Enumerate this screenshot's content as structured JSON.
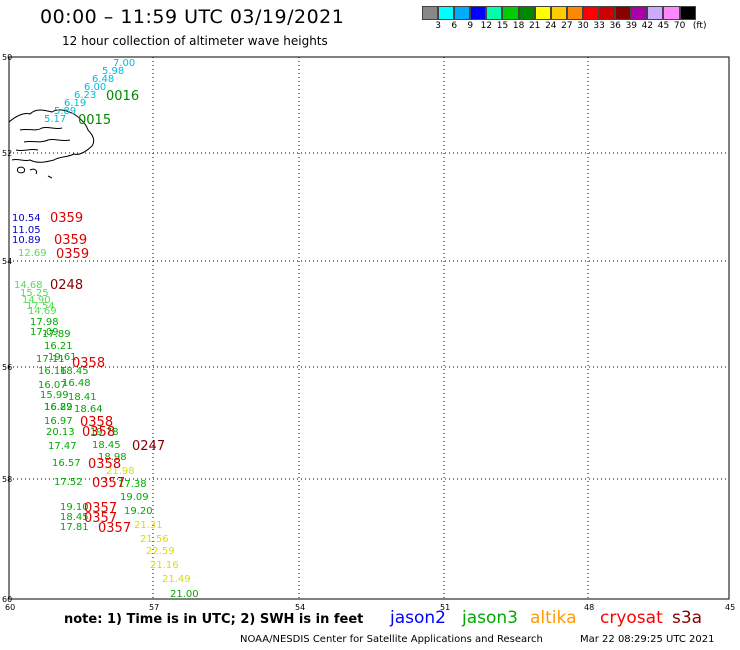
{
  "title": "00:00 – 11:59 UTC 03/19/2021",
  "subtitle": "12 hour collection of altimeter wave heights",
  "colorbar": {
    "colors": [
      "#888888",
      "#00ffff",
      "#00aaff",
      "#0000ff",
      "#00ffaa",
      "#00cc00",
      "#008800",
      "#ffff00",
      "#ffcc00",
      "#ff8800",
      "#ff0000",
      "#cc0000",
      "#880000",
      "#aa00aa",
      "#ccaaff",
      "#ff88ff",
      "#000000"
    ],
    "labels": [
      "3",
      "6",
      "9",
      "12",
      "15",
      "18",
      "21",
      "24",
      "27",
      "30",
      "33",
      "36",
      "39",
      "42",
      "45",
      "70",
      "(ft)"
    ]
  },
  "axes": {
    "lat_labels": [
      "50",
      "52",
      "54",
      "56",
      "58",
      "60"
    ],
    "lon_labels": [
      "60",
      "57",
      "54",
      "51",
      "48",
      "45"
    ]
  },
  "swh_labels": [
    {
      "t": "7.00",
      "c": "#00bbdd"
    },
    {
      "t": "5.98",
      "c": "#00bbdd"
    },
    {
      "t": "6.48",
      "c": "#00bbdd"
    },
    {
      "t": "6.00",
      "c": "#00bbdd"
    },
    {
      "t": "6.23",
      "c": "#00bbdd"
    },
    {
      "t": "6.19",
      "c": "#00bbdd"
    },
    {
      "t": "5.89",
      "c": "#00bbdd"
    },
    {
      "t": "5.17",
      "c": "#00bbdd"
    },
    {
      "t": "10.54",
      "c": "#0000cc"
    },
    {
      "t": "11.05",
      "c": "#0000cc"
    },
    {
      "t": "10.89",
      "c": "#0000cc"
    },
    {
      "t": "12.69",
      "c": "#55dd55"
    },
    {
      "t": "14.68",
      "c": "#55dd55"
    },
    {
      "t": "15.25",
      "c": "#55dd55"
    },
    {
      "t": "14.90",
      "c": "#55dd55"
    },
    {
      "t": "17.54",
      "c": "#55dd55"
    },
    {
      "t": "14.69",
      "c": "#55dd55"
    },
    {
      "t": "17.98",
      "c": "#00aa00"
    },
    {
      "t": "17.09",
      "c": "#00aa00"
    },
    {
      "t": "17.89",
      "c": "#00aa00"
    },
    {
      "t": "16.21",
      "c": "#00aa00"
    },
    {
      "t": "17.11",
      "c": "#00aa00"
    },
    {
      "t": "19.61",
      "c": "#00aa00"
    },
    {
      "t": "16.16",
      "c": "#00aa00"
    },
    {
      "t": "18.45",
      "c": "#00aa00"
    },
    {
      "t": "16.07",
      "c": "#00aa00"
    },
    {
      "t": "16.48",
      "c": "#00aa00"
    },
    {
      "t": "15.99",
      "c": "#00aa00"
    },
    {
      "t": "18.41",
      "c": "#00aa00"
    },
    {
      "t": "16.82",
      "c": "#00aa00"
    },
    {
      "t": "16.29",
      "c": "#00aa00"
    },
    {
      "t": "18.64",
      "c": "#00aa00"
    },
    {
      "t": "16.97",
      "c": "#00aa00"
    },
    {
      "t": "20.13",
      "c": "#00aa00"
    },
    {
      "t": "19.78",
      "c": "#00aa00"
    },
    {
      "t": "17.47",
      "c": "#00aa00"
    },
    {
      "t": "18.45",
      "c": "#00aa00"
    },
    {
      "t": "16.57",
      "c": "#00aa00"
    },
    {
      "t": "18.98",
      "c": "#00aa00"
    },
    {
      "t": "17.52",
      "c": "#00aa00"
    },
    {
      "t": "17.38",
      "c": "#00aa00"
    },
    {
      "t": "19.09",
      "c": "#00aa00"
    },
    {
      "t": "19.10",
      "c": "#00aa00"
    },
    {
      "t": "19.20",
      "c": "#00aa00"
    },
    {
      "t": "18.45",
      "c": "#00aa00"
    },
    {
      "t": "17.81",
      "c": "#00aa00"
    },
    {
      "t": "21.98",
      "c": "#dddd00"
    },
    {
      "t": "21.31",
      "c": "#dddd00"
    },
    {
      "t": "21.56",
      "c": "#dddd00"
    },
    {
      "t": "22.59",
      "c": "#dddd00"
    },
    {
      "t": "21.16",
      "c": "#dddd00"
    },
    {
      "t": "21.49",
      "c": "#dddd00"
    },
    {
      "t": "21.00",
      "c": "#00aa00"
    }
  ],
  "time_labels": [
    {
      "t": "0016",
      "c": "#008800"
    },
    {
      "t": "0015",
      "c": "#008800"
    },
    {
      "t": "0359",
      "c": "#dd0000"
    },
    {
      "t": "0359",
      "c": "#dd0000"
    },
    {
      "t": "0359",
      "c": "#dd0000"
    },
    {
      "t": "0248",
      "c": "#880000"
    },
    {
      "t": "0358",
      "c": "#dd0000"
    },
    {
      "t": "0358",
      "c": "#dd0000"
    },
    {
      "t": "0358",
      "c": "#dd0000"
    },
    {
      "t": "0247",
      "c": "#880000"
    },
    {
      "t": "0358",
      "c": "#dd0000"
    },
    {
      "t": "0357",
      "c": "#dd0000"
    },
    {
      "t": "0357",
      "c": "#dd0000"
    },
    {
      "t": "0357",
      "c": "#dd0000"
    },
    {
      "t": "0357",
      "c": "#dd0000"
    }
  ],
  "note": "note:  1) Time is in UTC;  2) SWH is in feet",
  "legend": [
    {
      "name": "jason2",
      "color": "#0000ff"
    },
    {
      "name": "jason3",
      "color": "#00aa00"
    },
    {
      "name": "altika",
      "color": "#ff9900"
    },
    {
      "name": "cryosat",
      "color": "#ff0000"
    },
    {
      "name": "s3a",
      "color": "#880000"
    }
  ],
  "credit": "NOAA/NESDIS Center for Satellite Applications and Research",
  "timestamp": "Mar 22 08:29:25 UTC 2021"
}
